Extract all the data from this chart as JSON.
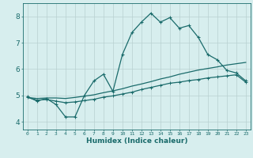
{
  "xlabel": "Humidex (Indice chaleur)",
  "bg_color": "#d7eeee",
  "grid_color": "#b8d0d0",
  "line_color": "#1a6b6b",
  "xlim": [
    -0.5,
    23.5
  ],
  "ylim": [
    3.7,
    8.5
  ],
  "xticks": [
    0,
    1,
    2,
    3,
    4,
    5,
    6,
    7,
    8,
    9,
    10,
    11,
    12,
    13,
    14,
    15,
    16,
    17,
    18,
    19,
    20,
    21,
    22,
    23
  ],
  "yticks": [
    4,
    5,
    6,
    7,
    8
  ],
  "series": {
    "line1": {
      "x": [
        0,
        1,
        2,
        3,
        4,
        5,
        6,
        7,
        8,
        9,
        10,
        11,
        12,
        13,
        14,
        15,
        16,
        17,
        18,
        19,
        20,
        21,
        22,
        23
      ],
      "y": [
        4.95,
        4.78,
        4.88,
        4.65,
        4.18,
        4.18,
        5.0,
        5.55,
        5.8,
        5.15,
        6.55,
        7.38,
        7.78,
        8.12,
        7.78,
        7.95,
        7.55,
        7.65,
        7.2,
        6.55,
        6.35,
        5.95,
        5.85,
        5.55
      ]
    },
    "line2": {
      "x": [
        0,
        1,
        2,
        3,
        4,
        5,
        6,
        7,
        8,
        9,
        10,
        11,
        12,
        13,
        14,
        15,
        16,
        17,
        18,
        19,
        20,
        21,
        22,
        23
      ],
      "y": [
        4.92,
        4.88,
        4.9,
        4.9,
        4.88,
        4.92,
        4.97,
        5.02,
        5.1,
        5.17,
        5.25,
        5.35,
        5.43,
        5.52,
        5.62,
        5.7,
        5.8,
        5.88,
        5.96,
        6.02,
        6.08,
        6.15,
        6.2,
        6.25
      ]
    },
    "line3": {
      "x": [
        0,
        1,
        2,
        3,
        4,
        5,
        6,
        7,
        8,
        9,
        10,
        11,
        12,
        13,
        14,
        15,
        16,
        17,
        18,
        19,
        20,
        21,
        22,
        23
      ],
      "y": [
        4.92,
        4.82,
        4.84,
        4.78,
        4.72,
        4.75,
        4.8,
        4.85,
        4.93,
        4.98,
        5.05,
        5.12,
        5.22,
        5.3,
        5.38,
        5.46,
        5.5,
        5.56,
        5.6,
        5.66,
        5.7,
        5.74,
        5.78,
        5.5
      ]
    }
  }
}
